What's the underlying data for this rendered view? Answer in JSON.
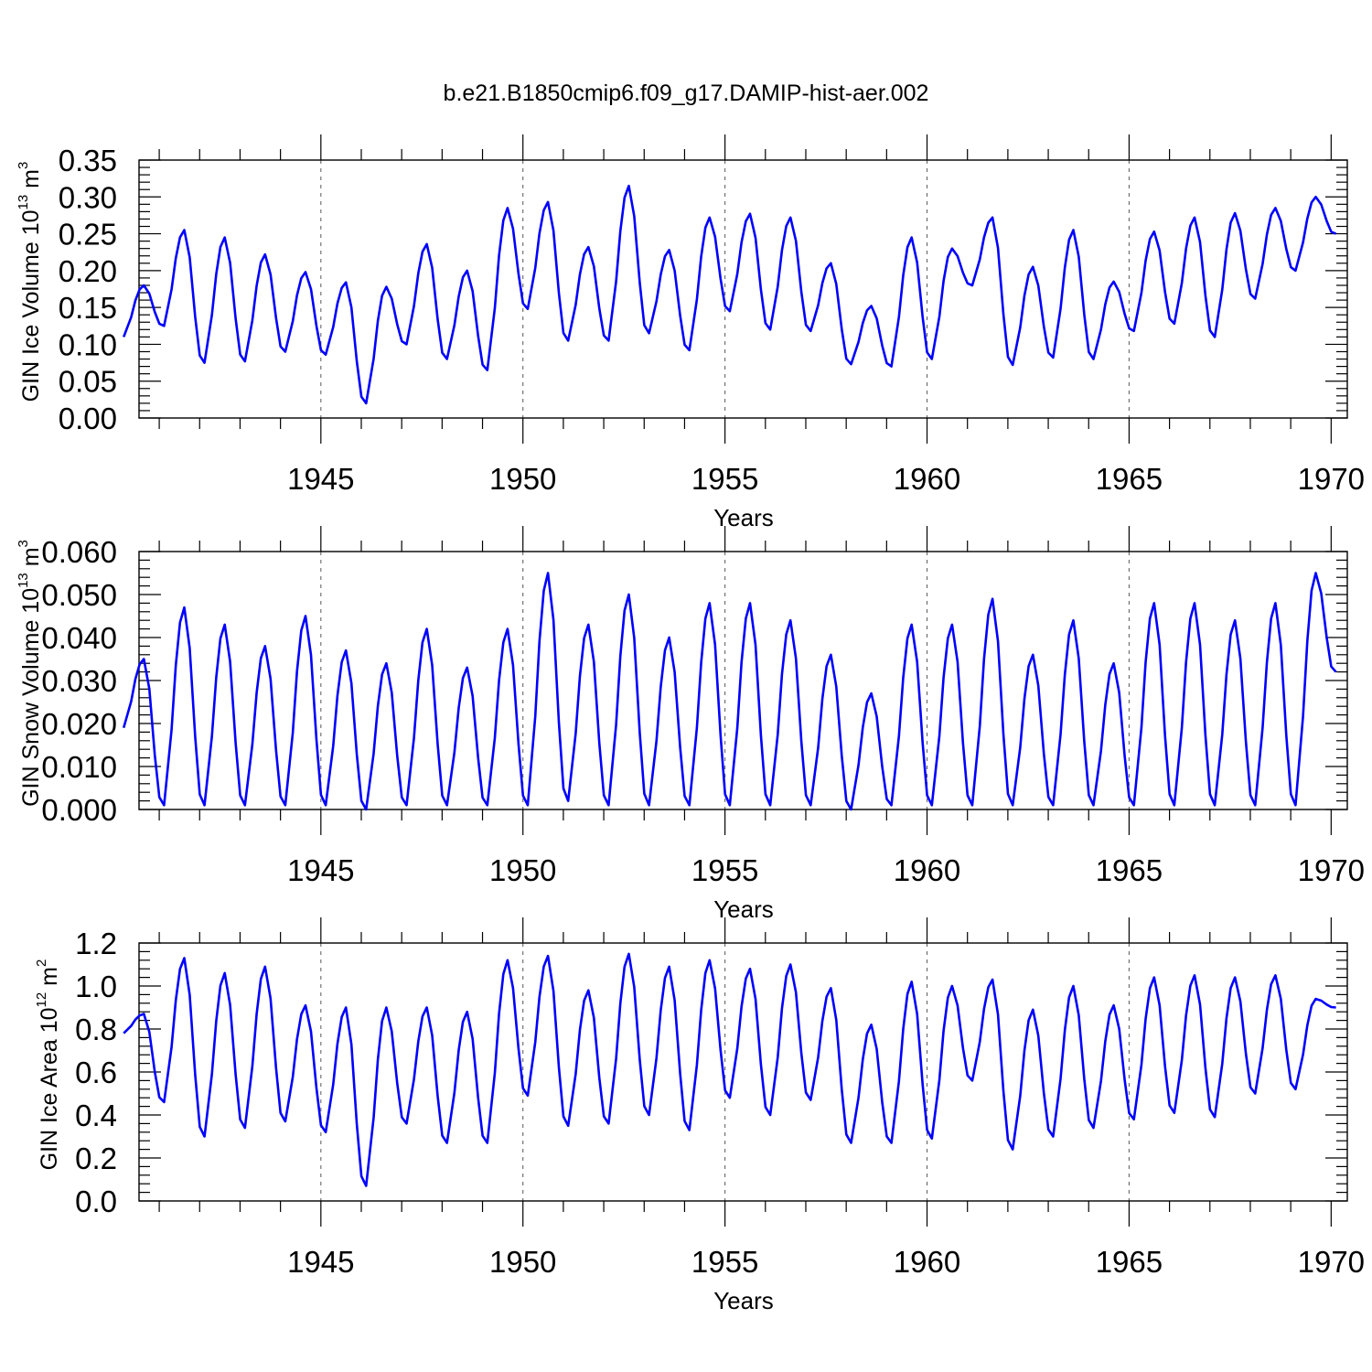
{
  "figure_title": "b.e21.B1850cmip6.f09_g17.DAMIP-hist-aer.002",
  "line_color": "#0000ff",
  "x_axis": {
    "label": "Years",
    "range": [
      1940,
      1970
    ],
    "ticks": [
      "1945",
      "1950",
      "1955",
      "1960",
      "1965",
      "1970"
    ]
  },
  "chart_data": [
    {
      "type": "line",
      "title": "b.e21.B1850cmip6.f09_g17.DAMIP-hist-aer.002",
      "xlabel": "Years",
      "ylabel_parts": [
        "GIN Ice Volume 10",
        "13",
        " m",
        "3"
      ],
      "ylim": [
        0,
        0.35
      ],
      "xlim": [
        1940,
        1970
      ],
      "ytick_labels": [
        "0.00",
        "0.05",
        "0.10",
        "0.15",
        "0.20",
        "0.25",
        "0.30",
        "0.35"
      ],
      "series": [
        {
          "name": "GIN Ice Volume",
          "peaks": [
            0.18,
            0.255,
            0.245,
            0.222,
            0.198,
            0.184,
            0.178,
            0.236,
            0.2,
            0.285,
            0.293,
            0.232,
            0.315,
            0.228,
            0.272,
            0.277,
            0.272,
            0.21,
            0.152,
            0.245,
            0.23,
            0.272,
            0.205,
            0.255,
            0.185,
            0.253,
            0.272,
            0.278,
            0.285,
            0.3
          ],
          "troughs": [
            0.11,
            0.125,
            0.075,
            0.077,
            0.09,
            0.086,
            0.02,
            0.1,
            0.08,
            0.065,
            0.148,
            0.105,
            0.105,
            0.115,
            0.092,
            0.145,
            0.12,
            0.118,
            0.073,
            0.07,
            0.08,
            0.18,
            0.072,
            0.082,
            0.08,
            0.118,
            0.128,
            0.11,
            0.162,
            0.2,
            0.25
          ]
        }
      ]
    },
    {
      "type": "line",
      "title": "",
      "xlabel": "Years",
      "ylabel_parts": [
        "GIN Snow Volume 10",
        "13",
        " m",
        "3"
      ],
      "ylim": [
        0,
        0.06
      ],
      "xlim": [
        1940,
        1970
      ],
      "ytick_labels": [
        "0.000",
        "0.010",
        "0.020",
        "0.030",
        "0.040",
        "0.050",
        "0.060"
      ],
      "series": [
        {
          "name": "GIN Snow Volume",
          "peaks": [
            0.035,
            0.047,
            0.043,
            0.038,
            0.045,
            0.037,
            0.034,
            0.042,
            0.033,
            0.042,
            0.055,
            0.043,
            0.05,
            0.04,
            0.048,
            0.048,
            0.044,
            0.036,
            0.027,
            0.043,
            0.043,
            0.049,
            0.036,
            0.044,
            0.034,
            0.048,
            0.048,
            0.044,
            0.048,
            0.055
          ],
          "troughs": [
            0.019,
            0.001,
            0.001,
            0.001,
            0.001,
            0.001,
            0.0,
            0.001,
            0.001,
            0.001,
            0.001,
            0.002,
            0.001,
            0.001,
            0.001,
            0.001,
            0.001,
            0.001,
            0.0,
            0.001,
            0.001,
            0.001,
            0.001,
            0.001,
            0.001,
            0.001,
            0.001,
            0.001,
            0.001,
            0.001,
            0.032
          ]
        }
      ]
    },
    {
      "type": "line",
      "title": "",
      "xlabel": "Years",
      "ylabel_parts": [
        "GIN Ice Area 10",
        "12",
        " m",
        "2"
      ],
      "ylim": [
        0,
        1.2
      ],
      "xlim": [
        1940,
        1970
      ],
      "ytick_labels": [
        "0.0",
        "0.2",
        "0.4",
        "0.6",
        "0.8",
        "1.0",
        "1.2"
      ],
      "series": [
        {
          "name": "GIN Ice Area",
          "peaks": [
            0.87,
            1.13,
            1.06,
            1.09,
            0.91,
            0.9,
            0.9,
            0.9,
            0.88,
            1.12,
            1.14,
            0.98,
            1.15,
            1.09,
            1.12,
            1.08,
            1.1,
            0.99,
            0.82,
            1.02,
            1.0,
            1.03,
            0.89,
            1.0,
            0.91,
            1.04,
            1.05,
            1.04,
            1.05,
            0.94
          ],
          "troughs": [
            0.78,
            0.46,
            0.3,
            0.34,
            0.37,
            0.32,
            0.07,
            0.36,
            0.27,
            0.27,
            0.49,
            0.35,
            0.36,
            0.4,
            0.33,
            0.48,
            0.4,
            0.47,
            0.27,
            0.27,
            0.29,
            0.56,
            0.24,
            0.3,
            0.34,
            0.38,
            0.41,
            0.39,
            0.5,
            0.52,
            0.9
          ]
        }
      ]
    }
  ]
}
